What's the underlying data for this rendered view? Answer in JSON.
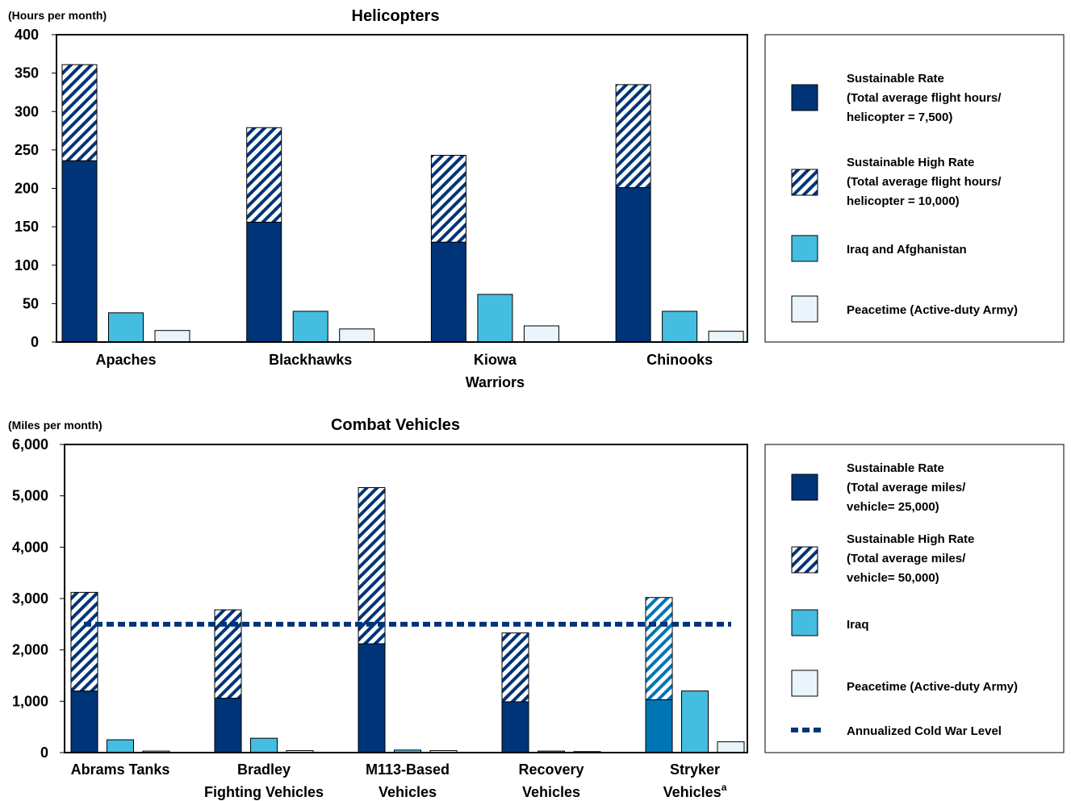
{
  "colors": {
    "sustainable": "#003478",
    "high_rate_stripe": "#003478",
    "iraq": "#45bde0",
    "peacetime": "#eaf4fb",
    "cold_war": "#003478",
    "stryker_sustainable": "#0074b4"
  },
  "chart_data": [
    {
      "type": "bar",
      "title": "Helicopters",
      "ylabel": "(Hours per month)",
      "ylim": [
        0,
        400
      ],
      "yticks": [
        "0",
        "50",
        "100",
        "150",
        "200",
        "250",
        "300",
        "350",
        "400"
      ],
      "ytick_values": [
        0,
        50,
        100,
        150,
        200,
        250,
        300,
        350,
        400
      ],
      "categories": [
        "Apaches",
        "Blackhawks",
        "Kiowa\nWarriors",
        "Chinooks"
      ],
      "series": [
        {
          "name": "Sustainable Rate",
          "values": [
            236,
            156,
            130,
            201
          ],
          "stack": "a"
        },
        {
          "name": "Sustainable High Rate",
          "values": [
            125,
            123,
            113,
            134
          ],
          "stack": "a"
        },
        {
          "name": "Iraq and Afghanistan",
          "values": [
            38,
            40,
            62,
            40
          ]
        },
        {
          "name": "Peacetime (Active-duty Army)",
          "values": [
            15,
            17,
            21,
            14
          ]
        }
      ],
      "legend": [
        {
          "key": "sustainable",
          "lines": [
            "Sustainable Rate",
            "(Total average flight hours/",
            "helicopter = 7,500)"
          ]
        },
        {
          "key": "high",
          "lines": [
            "Sustainable High Rate",
            "(Total average flight hours/",
            "helicopter = 10,000)"
          ]
        },
        {
          "key": "iraq",
          "lines": [
            "Iraq and Afghanistan"
          ]
        },
        {
          "key": "peace",
          "lines": [
            "Peacetime (Active-duty Army)"
          ]
        }
      ],
      "legend_placement": "right"
    },
    {
      "type": "bar",
      "title": "Combat Vehicles",
      "ylabel": "(Miles per month)",
      "ylim": [
        0,
        6000
      ],
      "yticks": [
        "0",
        "1,000",
        "2,000",
        "3,000",
        "4,000",
        "5,000",
        "6,000"
      ],
      "ytick_values": [
        0,
        1000,
        2000,
        3000,
        4000,
        5000,
        6000
      ],
      "categories": [
        "Abrams Tanks",
        "Bradley\nFighting Vehicles",
        "M113-Based\nVehicles",
        "Recovery\nVehicles",
        "Stryker\nVehicles"
      ],
      "category_superscripts": [
        "",
        "",
        "",
        "",
        "a"
      ],
      "series": [
        {
          "name": "Sustainable Rate",
          "values": [
            1200,
            1060,
            2120,
            990,
            1030
          ],
          "stack": "a"
        },
        {
          "name": "Sustainable High Rate",
          "values": [
            1920,
            1720,
            3040,
            1340,
            1990
          ],
          "stack": "a"
        },
        {
          "name": "Iraq",
          "values": [
            250,
            280,
            50,
            30,
            1200
          ]
        },
        {
          "name": "Peacetime (Active-duty Army)",
          "values": [
            30,
            40,
            40,
            20,
            210
          ]
        }
      ],
      "reference_line": {
        "name": "Annualized Cold War Level",
        "value": 2500
      },
      "legend": [
        {
          "key": "sustainable",
          "lines": [
            "Sustainable Rate",
            "(Total average miles/",
            "vehicle= 25,000)"
          ]
        },
        {
          "key": "high",
          "lines": [
            "Sustainable High Rate",
            "(Total average miles/",
            "vehicle= 50,000)"
          ]
        },
        {
          "key": "iraq",
          "lines": [
            "Iraq"
          ]
        },
        {
          "key": "peace",
          "lines": [
            "Peacetime (Active-duty Army)"
          ]
        },
        {
          "key": "coldwar",
          "lines": [
            "Annualized Cold War Level"
          ]
        }
      ],
      "legend_placement": "right"
    }
  ]
}
